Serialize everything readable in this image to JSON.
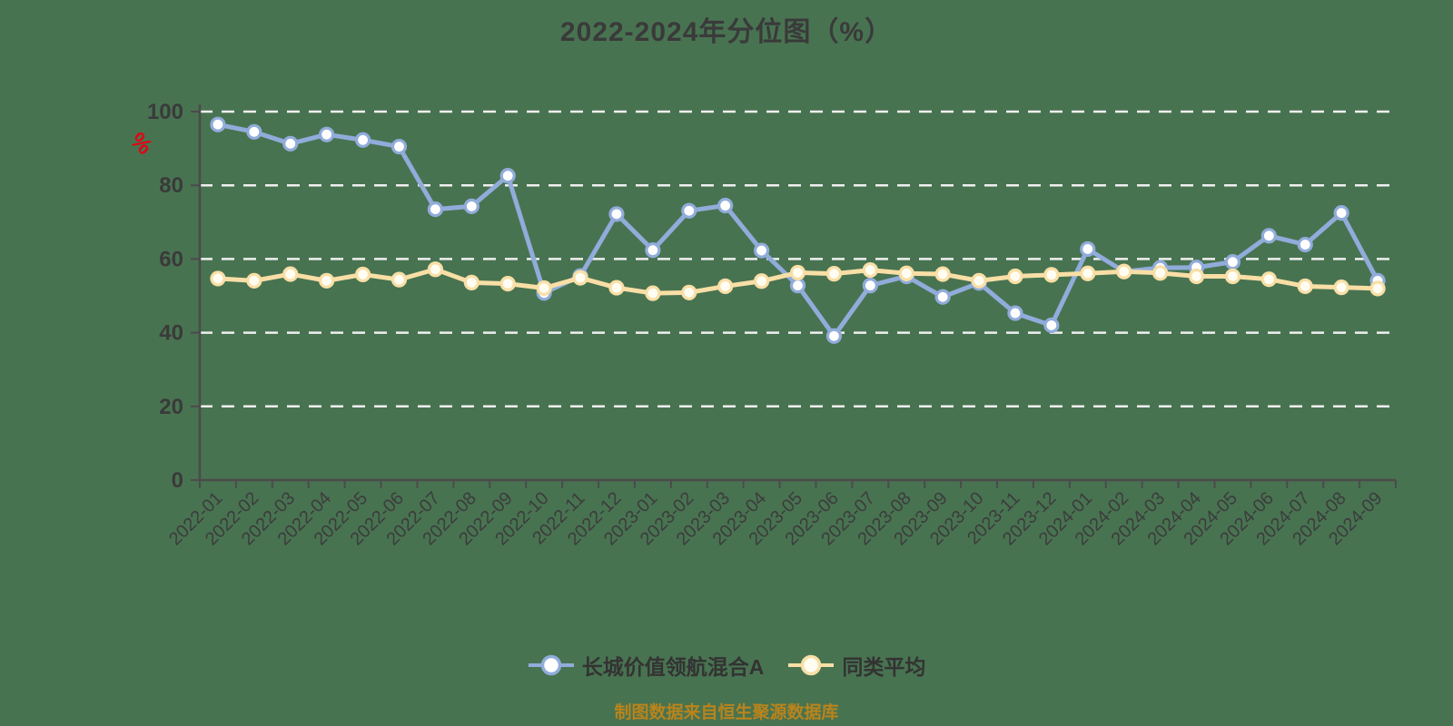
{
  "chart": {
    "title": "2022-2024年分位图（%）",
    "y_unit": "%",
    "source_note": "制图数据来自恒生聚源数据库"
  },
  "colors": {
    "background": "#487351",
    "grid": "#efefef",
    "axis": "#4b4b4b",
    "text": "#3a3a3a",
    "y_unit_red": "#e50113",
    "note_gold": "#b9841c",
    "series_blue": "#91acda",
    "series_yellow": "#f9dfa6"
  },
  "chart_data": {
    "type": "line",
    "title": "2022-2024年分位图（%）",
    "xlabel": "",
    "ylabel": "%",
    "ylim": [
      0,
      100
    ],
    "y_ticks": [
      0,
      20,
      40,
      60,
      80,
      100
    ],
    "grid": "horizontal-dashed-white",
    "legend_position": "bottom",
    "x_label_rotation": -45,
    "source_note": "制图数据来自恒生聚源数据库",
    "categories": [
      "2022-01",
      "2022-02",
      "2022-03",
      "2022-04",
      "2022-05",
      "2022-06",
      "2022-07",
      "2022-08",
      "2022-09",
      "2022-10",
      "2022-11",
      "2022-12",
      "2023-01",
      "2023-02",
      "2023-03",
      "2023-04",
      "2023-05",
      "2023-06",
      "2023-07",
      "2023-08",
      "2023-09",
      "2023-10",
      "2023-11",
      "2023-12",
      "2024-01",
      "2024-02",
      "2024-03",
      "2024-04",
      "2024-05",
      "2024-06",
      "2024-07",
      "2024-08",
      "2024-09"
    ],
    "series": [
      {
        "name": "长城价值领航混合A",
        "color": "#91acda",
        "marker_fill": "#ffffff",
        "values": [
          96.5,
          94.5,
          91.3,
          93.8,
          92.3,
          90.5,
          73.5,
          74.3,
          82.6,
          50.8,
          55.4,
          72.2,
          62.4,
          73.1,
          74.5,
          62.3,
          52.8,
          39.1,
          52.8,
          55.3,
          49.7,
          53.5,
          45.3,
          42.0,
          62.7,
          56.6,
          57.6,
          57.7,
          59.2,
          66.3,
          63.9,
          72.5,
          54.1
        ]
      },
      {
        "name": "同类平均",
        "color": "#f9dfa6",
        "marker_fill": "#fffdf2",
        "values": [
          54.7,
          54.1,
          55.9,
          54.1,
          55.8,
          54.4,
          57.2,
          53.6,
          53.3,
          52.1,
          54.9,
          52.2,
          50.7,
          50.9,
          52.6,
          54.0,
          56.3,
          56.0,
          57.0,
          56.1,
          55.9,
          54.1,
          55.3,
          55.7,
          56.1,
          56.6,
          56.2,
          55.3,
          55.3,
          54.5,
          52.6,
          52.3,
          52.0
        ]
      }
    ]
  }
}
